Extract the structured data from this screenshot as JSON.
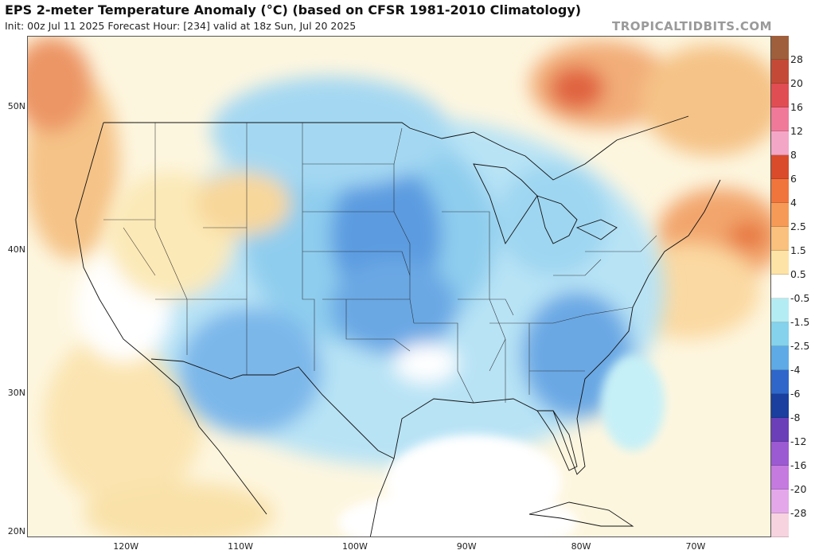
{
  "header": {
    "title": "EPS 2-meter Temperature Anomaly (°C) (based on CFSR 1981-2010 Climatology)",
    "subtitle": "Init: 00z Jul 11 2025   Forecast Hour: [234]   valid at 18z Sun, Jul 20 2025",
    "source": "TROPICALTIDBITS.COM"
  },
  "map": {
    "lat_labels": [
      {
        "label": "50N",
        "value": 50
      },
      {
        "label": "40N",
        "value": 40
      },
      {
        "label": "30N",
        "value": 30
      },
      {
        "label": "20N",
        "value": 20
      }
    ],
    "lon_labels": [
      {
        "label": "120W",
        "value": -120
      },
      {
        "label": "110W",
        "value": -110
      },
      {
        "label": "100W",
        "value": -100
      },
      {
        "label": "90W",
        "value": -90
      },
      {
        "label": "80W",
        "value": -80
      },
      {
        "label": "70W",
        "value": -70
      }
    ],
    "colors": {
      "ocean_neutral": "#ffffff",
      "cool_light": "#c6f0f7",
      "cool_mid": "#8fcdee",
      "cool_dark": "#5b9be0",
      "warm_light": "#fbe9b7",
      "warm_mid": "#f5c387",
      "warm_dark": "#e3704a"
    }
  },
  "colorbar": {
    "labels": [
      "28",
      "20",
      "16",
      "12",
      "8",
      "6",
      "4",
      "2.5",
      "1.5",
      "0.5",
      "-0.5",
      "-1.5",
      "-2.5",
      "-4",
      "-6",
      "-8",
      "-12",
      "-16",
      "-20",
      "-28"
    ],
    "colors": [
      "#a05f3c",
      "#c44a37",
      "#e04d52",
      "#f0799a",
      "#f4a6c6",
      "#d94b2a",
      "#f0753d",
      "#f59a57",
      "#f9c17d",
      "#fde3a6",
      "#ffffff",
      "#b4ecf3",
      "#84d2ec",
      "#5eaae6",
      "#2f66c9",
      "#1a3f9e",
      "#6a3fb8",
      "#9c5ad2",
      "#c57adf",
      "#e4a8ea",
      "#f6d3df"
    ]
  }
}
